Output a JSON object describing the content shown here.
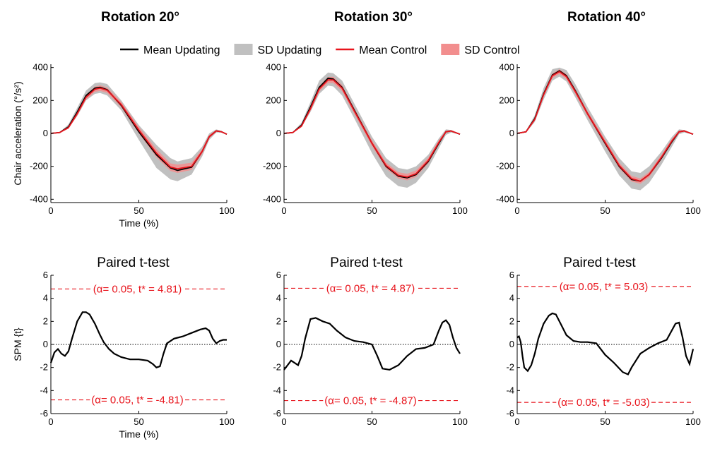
{
  "legend": [
    {
      "label": "Mean Updating",
      "kind": "line",
      "color": "#000000"
    },
    {
      "label": "SD Updating",
      "kind": "patch",
      "color": "#c0c0c0"
    },
    {
      "label": "Mean Control",
      "kind": "line",
      "color": "#e8141c"
    },
    {
      "label": "SD Control",
      "kind": "patch",
      "color": "#f28e8e"
    }
  ],
  "colors": {
    "updating_mean": "#000000",
    "updating_sd": "#c0c0c0",
    "control_mean": "#e8141c",
    "control_sd": "#f28e8e",
    "threshold": "#e8141c",
    "spm_curve": "#000000"
  },
  "chart_data": [
    {
      "type": "line",
      "title": "Rotation 20°",
      "xlabel": "Time (%)",
      "ylabel": "Chair acceleration (°/s²)",
      "xlim": [
        0,
        100
      ],
      "ylim": [
        -420,
        420
      ],
      "xticks": [
        "0",
        "50",
        "100"
      ],
      "yticks": [
        "400",
        "200",
        "0",
        "-200",
        "-400"
      ],
      "x": [
        0,
        5,
        10,
        15,
        20,
        25,
        28,
        32,
        40,
        50,
        60,
        68,
        72,
        80,
        86,
        90,
        94,
        97,
        100
      ],
      "series": [
        {
          "name": "Mean Updating",
          "values": [
            0,
            5,
            40,
            130,
            230,
            275,
            280,
            265,
            170,
            10,
            -130,
            -210,
            -225,
            -205,
            -110,
            -20,
            15,
            10,
            -5
          ]
        },
        {
          "name": "SD Updating",
          "lower": [
            0,
            3,
            30,
            105,
            200,
            240,
            245,
            230,
            140,
            -40,
            -210,
            -280,
            -290,
            -250,
            -140,
            -40,
            5,
            5,
            -5
          ],
          "upper": [
            0,
            8,
            55,
            155,
            260,
            305,
            310,
            300,
            200,
            50,
            -70,
            -150,
            -170,
            -150,
            -80,
            0,
            25,
            15,
            -5
          ]
        },
        {
          "name": "Mean Control",
          "values": [
            0,
            5,
            35,
            120,
            220,
            268,
            275,
            262,
            175,
            20,
            -120,
            -205,
            -215,
            -200,
            -110,
            -20,
            15,
            10,
            -5
          ]
        },
        {
          "name": "SD Control",
          "lower": [
            0,
            4,
            28,
            108,
            205,
            252,
            258,
            246,
            158,
            0,
            -145,
            -228,
            -240,
            -222,
            -125,
            -30,
            10,
            8,
            -5
          ],
          "upper": [
            0,
            6,
            42,
            132,
            235,
            284,
            292,
            278,
            192,
            40,
            -95,
            -182,
            -190,
            -178,
            -95,
            -10,
            20,
            12,
            -5
          ]
        }
      ]
    },
    {
      "type": "line",
      "title": "Rotation 30°",
      "xlabel": "",
      "ylabel": "",
      "xlim": [
        0,
        100
      ],
      "ylim": [
        -420,
        420
      ],
      "xticks": [
        "0",
        "50",
        "100"
      ],
      "yticks": [
        "400",
        "200",
        "0",
        "-200",
        "-400"
      ],
      "x": [
        0,
        5,
        10,
        15,
        20,
        25,
        28,
        33,
        40,
        50,
        58,
        65,
        70,
        75,
        82,
        88,
        92,
        95,
        100
      ],
      "series": [
        {
          "name": "Mean Updating",
          "values": [
            0,
            5,
            50,
            160,
            280,
            335,
            330,
            280,
            140,
            -60,
            -200,
            -260,
            -270,
            -250,
            -170,
            -60,
            10,
            15,
            -5
          ]
        },
        {
          "name": "SD Updating",
          "lower": [
            0,
            3,
            40,
            130,
            240,
            290,
            285,
            230,
            90,
            -120,
            -260,
            -320,
            -330,
            -300,
            -210,
            -90,
            -10,
            5,
            -5
          ],
          "upper": [
            0,
            8,
            65,
            190,
            320,
            370,
            365,
            320,
            180,
            -20,
            -150,
            -210,
            -220,
            -200,
            -130,
            -30,
            25,
            20,
            -5
          ]
        },
        {
          "name": "Mean Control",
          "values": [
            0,
            5,
            45,
            150,
            270,
            325,
            325,
            275,
            135,
            -60,
            -195,
            -255,
            -265,
            -245,
            -165,
            -55,
            10,
            15,
            -5
          ]
        },
        {
          "name": "SD Control",
          "lower": [
            0,
            4,
            38,
            136,
            254,
            307,
            306,
            256,
            118,
            -78,
            -214,
            -274,
            -285,
            -265,
            -182,
            -68,
            4,
            10,
            -5
          ],
          "upper": [
            0,
            6,
            52,
            164,
            286,
            343,
            344,
            294,
            152,
            -42,
            -176,
            -236,
            -245,
            -225,
            -148,
            -42,
            16,
            18,
            -5
          ]
        }
      ]
    },
    {
      "type": "line",
      "title": "Rotation 40°",
      "xlabel": "",
      "ylabel": "",
      "xlim": [
        0,
        100
      ],
      "ylim": [
        -420,
        420
      ],
      "xticks": [
        "0",
        "50",
        "100"
      ],
      "yticks": [
        "400",
        "200",
        "0",
        "-200",
        "-400"
      ],
      "x": [
        0,
        5,
        10,
        15,
        20,
        24,
        28,
        33,
        40,
        50,
        58,
        65,
        70,
        75,
        82,
        88,
        92,
        95,
        100
      ],
      "series": [
        {
          "name": "Mean Updating",
          "values": [
            0,
            10,
            90,
            240,
            355,
            380,
            350,
            260,
            120,
            -60,
            -200,
            -280,
            -290,
            -250,
            -150,
            -50,
            10,
            15,
            -5
          ]
        },
        {
          "name": "SD Updating",
          "lower": [
            0,
            5,
            70,
            205,
            320,
            345,
            315,
            220,
            80,
            -110,
            -255,
            -335,
            -345,
            -300,
            -190,
            -80,
            -5,
            5,
            -5
          ],
          "upper": [
            0,
            15,
            110,
            275,
            390,
            400,
            385,
            300,
            160,
            -20,
            -150,
            -230,
            -240,
            -200,
            -110,
            -20,
            25,
            20,
            -5
          ]
        },
        {
          "name": "Mean Control",
          "values": [
            0,
            10,
            85,
            235,
            350,
            375,
            345,
            255,
            120,
            -55,
            -195,
            -275,
            -290,
            -250,
            -145,
            -45,
            10,
            15,
            -5
          ]
        },
        {
          "name": "SD Control",
          "lower": [
            0,
            6,
            78,
            222,
            336,
            360,
            330,
            240,
            104,
            -72,
            -212,
            -292,
            -306,
            -266,
            -160,
            -56,
            4,
            10,
            -5
          ],
          "upper": [
            0,
            14,
            92,
            248,
            364,
            390,
            360,
            270,
            136,
            -38,
            -178,
            -258,
            -274,
            -234,
            -130,
            -34,
            16,
            20,
            -5
          ]
        }
      ]
    },
    {
      "type": "line",
      "title": "Paired t-test",
      "xlabel": "Time (%)",
      "ylabel": "SPM {t}",
      "xlim": [
        0,
        100
      ],
      "ylim": [
        -6,
        6
      ],
      "xticks": [
        "0",
        "50",
        "100"
      ],
      "yticks": [
        "6",
        "4",
        "2",
        "0",
        "-2",
        "-4",
        "-6"
      ],
      "threshold_upper": 4.81,
      "threshold_lower": -4.81,
      "threshold_label_upper": "(α= 0.05, t* = 4.81)",
      "threshold_label_lower": "(α= 0.05, t* = -4.81)",
      "x": [
        0,
        2,
        4,
        6,
        8,
        10,
        12,
        15,
        18,
        20,
        22,
        25,
        28,
        30,
        33,
        36,
        40,
        45,
        50,
        55,
        58,
        60,
        62,
        64,
        66,
        70,
        75,
        80,
        85,
        88,
        90,
        92,
        94,
        96,
        98,
        100
      ],
      "series": [
        {
          "name": "",
          "values": [
            -1.6,
            -0.7,
            -0.4,
            -0.8,
            -1.0,
            -0.6,
            0.5,
            2.0,
            2.8,
            2.8,
            2.6,
            1.8,
            0.8,
            0.2,
            -0.4,
            -0.8,
            -1.1,
            -1.3,
            -1.3,
            -1.4,
            -1.7,
            -2.0,
            -1.9,
            -0.8,
            0.1,
            0.5,
            0.7,
            1.0,
            1.3,
            1.4,
            1.2,
            0.5,
            0.1,
            0.3,
            0.4,
            0.4
          ]
        }
      ]
    },
    {
      "type": "line",
      "title": "Paired t-test",
      "xlabel": "",
      "ylabel": "",
      "xlim": [
        0,
        100
      ],
      "ylim": [
        -6,
        6
      ],
      "xticks": [
        "0",
        "50",
        "100"
      ],
      "yticks": [
        "6",
        "4",
        "2",
        "0",
        "-2",
        "-4",
        "-6"
      ],
      "threshold_upper": 4.87,
      "threshold_lower": -4.87,
      "threshold_label_upper": "(α= 0.05, t* = 4.87)",
      "threshold_label_lower": "(α= 0.05, t* = -4.87)",
      "x": [
        0,
        2,
        4,
        6,
        8,
        10,
        12,
        15,
        18,
        22,
        26,
        30,
        35,
        40,
        45,
        50,
        53,
        56,
        60,
        65,
        70,
        75,
        80,
        85,
        88,
        90,
        92,
        94,
        96,
        98,
        100
      ],
      "series": [
        {
          "name": "",
          "values": [
            -2.2,
            -1.8,
            -1.4,
            -1.6,
            -1.8,
            -1.0,
            0.5,
            2.2,
            2.3,
            2.0,
            1.8,
            1.2,
            0.6,
            0.3,
            0.2,
            0.0,
            -1.0,
            -2.1,
            -2.2,
            -1.8,
            -1.0,
            -0.4,
            -0.3,
            0.0,
            1.2,
            1.9,
            2.1,
            1.7,
            0.6,
            -0.3,
            -0.8
          ]
        }
      ]
    },
    {
      "type": "line",
      "title": "Paired t-test",
      "xlabel": "",
      "ylabel": "",
      "xlim": [
        0,
        100
      ],
      "ylim": [
        -6,
        6
      ],
      "xticks": [
        "0",
        "50",
        "100"
      ],
      "yticks": [
        "6",
        "4",
        "2",
        "0",
        "-2",
        "-4",
        "-6"
      ],
      "threshold_upper": 5.03,
      "threshold_lower": -5.03,
      "threshold_label_upper": "(α= 0.05, t* = 5.03)",
      "threshold_label_lower": "(α= 0.05, t* = -5.03)",
      "x": [
        0,
        1,
        2,
        3,
        4,
        6,
        8,
        10,
        12,
        15,
        18,
        20,
        22,
        25,
        28,
        32,
        36,
        40,
        45,
        50,
        55,
        60,
        63,
        65,
        70,
        75,
        80,
        85,
        90,
        92,
        94,
        96,
        98,
        100
      ],
      "series": [
        {
          "name": "",
          "values": [
            0.6,
            0.7,
            0.2,
            -1.0,
            -2.0,
            -2.3,
            -1.8,
            -0.8,
            0.5,
            1.8,
            2.5,
            2.7,
            2.6,
            1.7,
            0.8,
            0.3,
            0.2,
            0.2,
            0.1,
            -0.9,
            -1.6,
            -2.4,
            -2.6,
            -2.0,
            -0.8,
            -0.3,
            0.1,
            0.4,
            1.8,
            1.9,
            0.6,
            -1.0,
            -1.7,
            -0.4
          ]
        }
      ]
    }
  ]
}
